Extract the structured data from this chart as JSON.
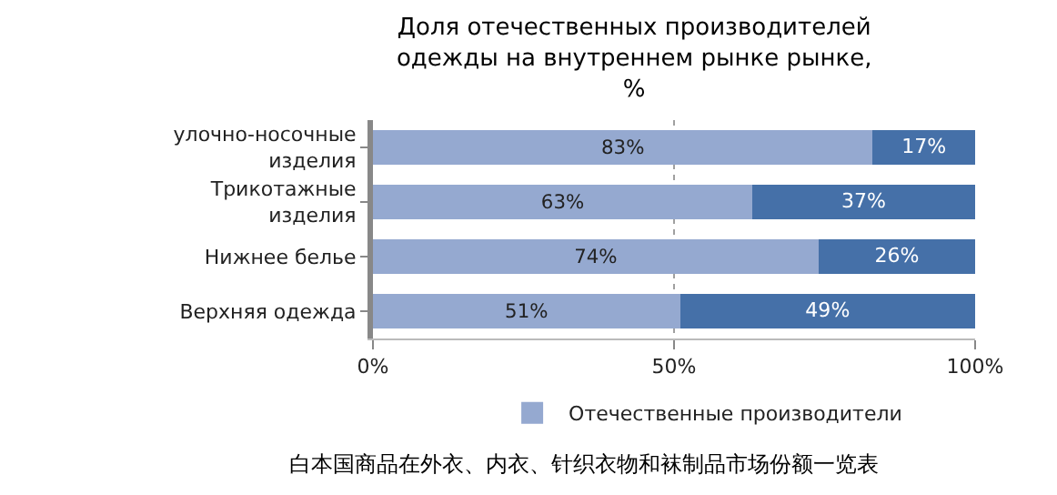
{
  "chart_data": {
    "type": "bar",
    "orientation": "horizontal",
    "stacked": true,
    "title": "Доля отечественных производителей одежды на внутреннем рынке рынке, %",
    "categories": [
      "улочно-носочные изделия",
      "Трикотажные изделия",
      "Нижнее белье",
      "Верхняя одежда"
    ],
    "series": [
      {
        "name": "Отечественные производители",
        "color": "#95a9d0",
        "values": [
          83,
          63,
          74,
          51
        ],
        "value_labels": [
          "83%",
          "63%",
          "74%",
          "51%"
        ]
      },
      {
        "color": "#4570a8",
        "values": [
          17,
          37,
          26,
          49
        ],
        "value_labels": [
          "17%",
          "37%",
          "26%",
          "49%"
        ]
      }
    ],
    "xlim": [
      0,
      100
    ],
    "xticks": [
      {
        "value": 0,
        "label": "0%"
      },
      {
        "value": 50,
        "label": "50%"
      },
      {
        "value": 100,
        "label": "100%"
      }
    ],
    "grid": "x",
    "legend": "bottom",
    "annotations": [
      "白本国商品在外衣、内衣、针织衣物和袜制品市场份额一览表"
    ]
  }
}
